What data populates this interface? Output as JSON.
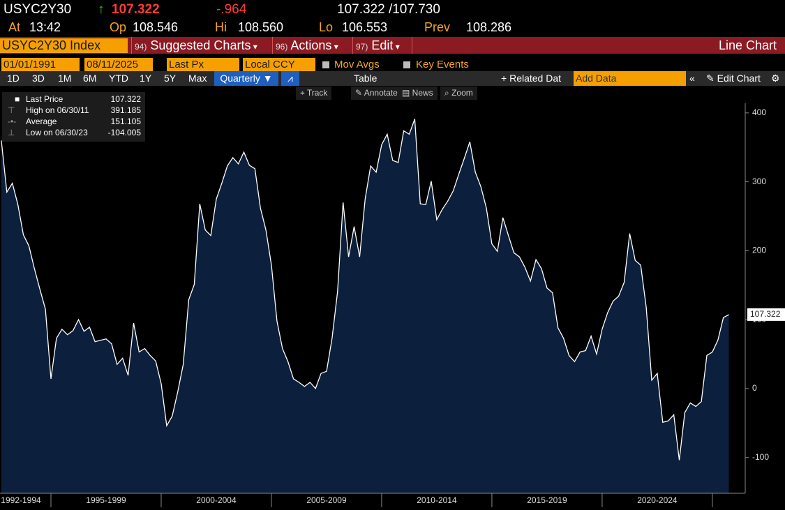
{
  "quote": {
    "ticker": "USYC2Y30",
    "arrow": "↑",
    "last": "107.322",
    "change": "-.964",
    "bid_ask": "107.322 /107.730",
    "fields": [
      {
        "label": "At",
        "value": "13:42"
      },
      {
        "label": "Op",
        "value": "108.546"
      },
      {
        "label": "Hi",
        "value": "108.560"
      },
      {
        "label": "Lo",
        "value": "106.553"
      },
      {
        "label": "Prev",
        "value": "108.286"
      }
    ]
  },
  "menu": {
    "security": "USYC2Y30 Index",
    "items": [
      {
        "num": "94)",
        "label": "Suggested Charts"
      },
      {
        "num": "96)",
        "label": "Actions"
      },
      {
        "num": "97)",
        "label": "Edit"
      }
    ],
    "view": "Line Chart"
  },
  "settings": {
    "start": "01/01/1991",
    "end": "08/11/2025",
    "field": "Last Px",
    "currency": "Local CCY",
    "options": [
      "Mov Avgs",
      "Key Events"
    ]
  },
  "toolbar": {
    "periods": [
      "1D",
      "3D",
      "1M",
      "6M",
      "YTD",
      "1Y",
      "5Y",
      "Max"
    ],
    "frequency": "Quarterly",
    "table": "Table",
    "related": "Related Dat",
    "add_data": "Add Data",
    "edit": "Edit Chart"
  },
  "tools": [
    "Track",
    "Annotate",
    "News",
    "Zoom"
  ],
  "chart_data": {
    "type": "area",
    "series": [
      {
        "name": "Last Price",
        "color": "#ffffff",
        "fill": "#0c1f3c",
        "x": [
          1992.75,
          1993,
          1993.25,
          1993.5,
          1993.75,
          1994,
          1994.25,
          1994.5,
          1994.75,
          1995,
          1995.25,
          1995.5,
          1995.75,
          1996,
          1996.25,
          1996.5,
          1996.75,
          1997,
          1997.25,
          1997.5,
          1997.75,
          1998,
          1998.25,
          1998.5,
          1998.75,
          1999,
          1999.25,
          1999.5,
          1999.75,
          2000,
          2000.25,
          2000.5,
          2000.75,
          2001,
          2001.25,
          2001.5,
          2001.75,
          2002,
          2002.25,
          2002.5,
          2002.75,
          2003,
          2003.25,
          2003.5,
          2003.75,
          2004,
          2004.25,
          2004.5,
          2004.75,
          2005,
          2005.25,
          2005.5,
          2005.75,
          2006,
          2006.25,
          2006.5,
          2006.75,
          2007,
          2007.25,
          2007.5,
          2007.75,
          2008,
          2008.25,
          2008.5,
          2008.75,
          2009,
          2009.25,
          2009.5,
          2009.75,
          2010,
          2010.25,
          2010.5,
          2010.75,
          2011,
          2011.25,
          2011.5,
          2011.75,
          2012,
          2012.25,
          2012.5,
          2012.75,
          2013,
          2013.25,
          2013.5,
          2013.75,
          2014,
          2014.25,
          2014.5,
          2014.75,
          2015,
          2015.25,
          2015.5,
          2015.75,
          2016,
          2016.25,
          2016.5,
          2016.75,
          2017,
          2017.25,
          2017.5,
          2017.75,
          2018,
          2018.25,
          2018.5,
          2018.75,
          2019,
          2019.25,
          2019.5,
          2019.75,
          2020,
          2020.25,
          2020.5,
          2020.75,
          2021,
          2021.25,
          2021.5,
          2021.75,
          2022,
          2022.25,
          2022.5,
          2022.75,
          2023,
          2023.25,
          2023.5,
          2023.75,
          2024,
          2024.25,
          2024.5,
          2024.75,
          2025,
          2025.25,
          2025.5,
          2025.75
        ],
        "values": [
          360,
          285,
          298,
          267,
          223,
          207,
          174,
          144,
          115,
          14,
          73,
          86,
          78,
          84,
          100,
          83,
          89,
          68,
          70,
          72,
          65,
          35,
          44,
          19,
          95,
          53,
          58,
          48,
          40,
          7,
          -54,
          -40,
          -5,
          35,
          129,
          151,
          268,
          230,
          222,
          275,
          298,
          323,
          335,
          326,
          343,
          324,
          319,
          262,
          230,
          179,
          98,
          58,
          39,
          14,
          9,
          3,
          9,
          0,
          22,
          25,
          73,
          141,
          270,
          191,
          235,
          191,
          275,
          323,
          314,
          354,
          369,
          331,
          328,
          374,
          369,
          391.185,
          268,
          267,
          301,
          245,
          260,
          272,
          287,
          311,
          334,
          358,
          314,
          293,
          262,
          210,
          199,
          248,
          222,
          197,
          191,
          176,
          156,
          187,
          174,
          146,
          139,
          88,
          73,
          48,
          39,
          53,
          55,
          76,
          50,
          86,
          110,
          127,
          134,
          154,
          225,
          186,
          179,
          118,
          12,
          22,
          -49,
          -47,
          -38,
          -104.005,
          -35,
          -21,
          -26,
          -19,
          48,
          53,
          70,
          103,
          107.322
        ]
      }
    ],
    "stats": [
      {
        "label": "High on 06/30/11",
        "value": 391.185
      },
      {
        "label": "Average",
        "value": 151.105
      },
      {
        "label": "Low on 06/30/23",
        "value": -104.005
      }
    ],
    "xlim": [
      1992.69,
      2026.49
    ],
    "xticks": [
      1995,
      2000,
      2005,
      2010,
      2015,
      2020,
      2025
    ],
    "xtick_labels": [
      "1992-1994",
      "1995-1999",
      "2000-2004",
      "2005-2009",
      "2010-2014",
      "2015-2019",
      "2020-2024"
    ],
    "ylim": [
      -152,
      414
    ],
    "yticks": [
      -100,
      0,
      100,
      200,
      300,
      400
    ]
  }
}
